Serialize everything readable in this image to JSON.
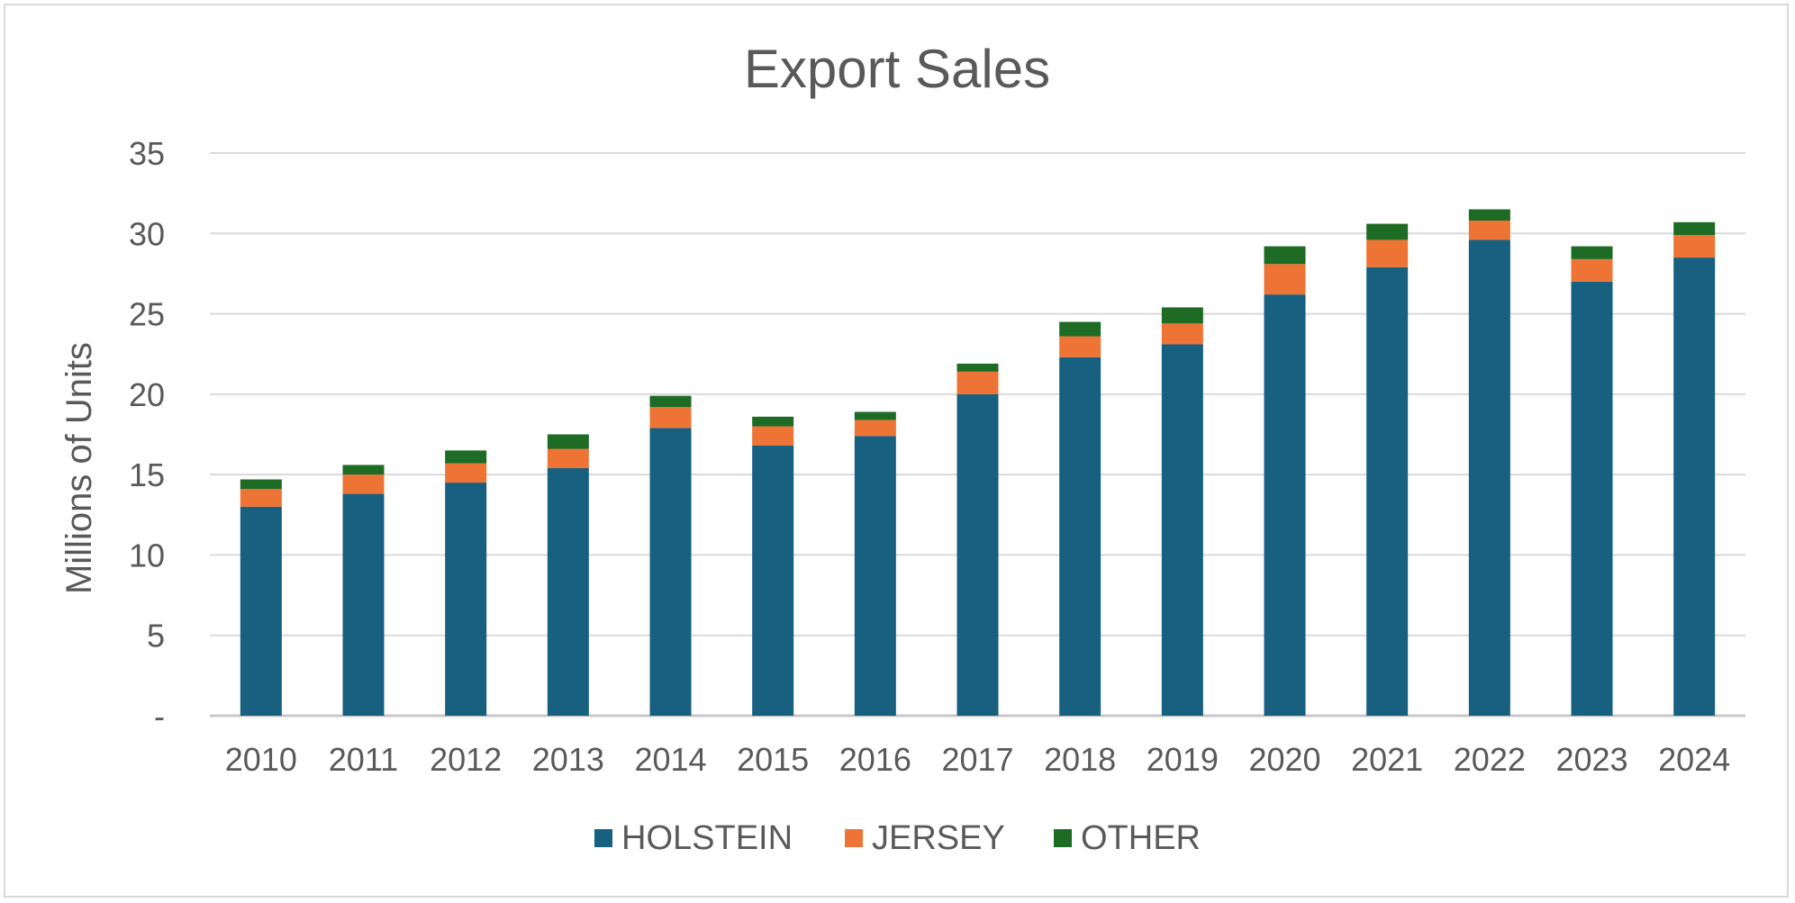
{
  "chart_data": {
    "type": "bar",
    "stacked": true,
    "title": "Export Sales",
    "xlabel": "",
    "ylabel": "Millions of Units",
    "ylim": [
      0,
      35
    ],
    "yticks": [
      "-",
      "5",
      "10",
      "15",
      "20",
      "25",
      "30",
      "35"
    ],
    "grid": true,
    "legend_position": "bottom",
    "categories": [
      "2010",
      "2011",
      "2012",
      "2013",
      "2014",
      "2015",
      "2016",
      "2017",
      "2018",
      "2019",
      "2020",
      "2021",
      "2022",
      "2023",
      "2024"
    ],
    "series": [
      {
        "name": "HOLSTEIN",
        "color": "#17607f",
        "values": [
          13.0,
          13.8,
          14.5,
          15.4,
          17.9,
          16.8,
          17.4,
          20.0,
          22.3,
          23.1,
          26.2,
          27.9,
          29.6,
          27.0,
          28.5
        ]
      },
      {
        "name": "JERSEY",
        "color": "#ed7434",
        "values": [
          1.1,
          1.2,
          1.2,
          1.2,
          1.3,
          1.2,
          1.0,
          1.4,
          1.3,
          1.3,
          1.9,
          1.7,
          1.2,
          1.4,
          1.4
        ]
      },
      {
        "name": "OTHER",
        "color": "#1d6b24",
        "values": [
          0.6,
          0.6,
          0.8,
          0.9,
          0.7,
          0.6,
          0.5,
          0.5,
          0.9,
          1.0,
          1.1,
          1.0,
          0.7,
          0.8,
          0.8
        ]
      }
    ]
  }
}
